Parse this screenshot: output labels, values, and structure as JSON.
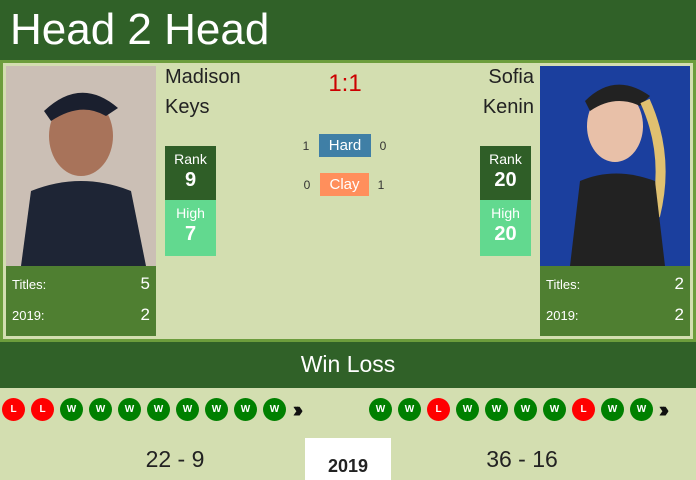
{
  "header": {
    "title": "Head 2 Head"
  },
  "score": "1:1",
  "colors": {
    "header": "#306128",
    "win": "#008000",
    "loss": "#ff0000",
    "hard": "#3f7fa6",
    "clay": "#ff8f5c"
  },
  "player1": {
    "first": "Madison",
    "last": "Keys",
    "rank_label": "Rank",
    "rank": "9",
    "high_label": "High",
    "high": "7",
    "titles_label": "Titles:",
    "titles": "5",
    "year_label": "2019:",
    "year_titles": "2",
    "record": "22 - 9",
    "form": [
      "L",
      "L",
      "W",
      "W",
      "W",
      "W",
      "W",
      "W",
      "W",
      "W"
    ]
  },
  "player2": {
    "first": "Sofia",
    "last": "Kenin",
    "rank_label": "Rank",
    "rank": "20",
    "high_label": "High",
    "high": "20",
    "titles_label": "Titles:",
    "titles": "2",
    "year_label": "2019:",
    "year_titles": "2",
    "record": "36 - 16",
    "form": [
      "W",
      "W",
      "L",
      "W",
      "W",
      "W",
      "W",
      "L",
      "W",
      "W"
    ]
  },
  "surfaces": [
    {
      "name": "Hard",
      "p1": "1",
      "p2": "0"
    },
    {
      "name": "Clay",
      "p1": "0",
      "p2": "1"
    }
  ],
  "winloss": {
    "title": "Win Loss",
    "year": "2019",
    "more_icon": "triple-chevron-right"
  }
}
